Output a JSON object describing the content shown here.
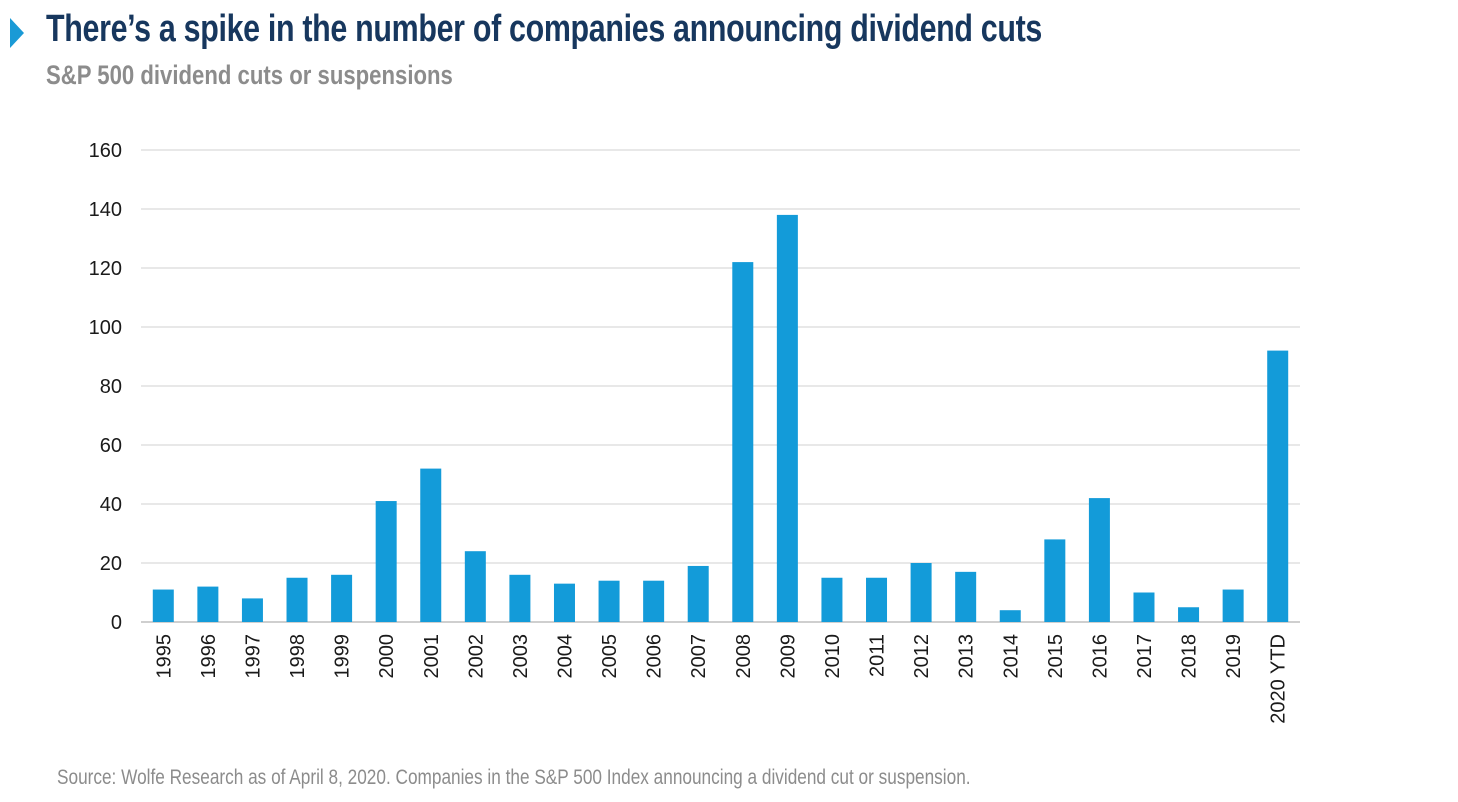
{
  "header": {
    "title": "There’s a spike in the number of companies announcing dividend cuts",
    "subtitle": "S&P 500 dividend cuts or suspensions"
  },
  "footer": {
    "source": "Source: Wolfe Research as of April 8, 2020. Companies in the S&P 500 Index announcing a dividend cut or suspension."
  },
  "colors": {
    "bar": "#139bd9",
    "marker": "#1a9ad6",
    "title": "#17375e",
    "subtitle": "#8c8c8c",
    "gridline": "#d9d9d9"
  },
  "chart_data": {
    "type": "bar",
    "title": "There’s a spike in the number of companies announcing dividend cuts",
    "subtitle": "S&P 500 dividend cuts or suspensions",
    "xlabel": "",
    "ylabel": "",
    "categories": [
      "1995",
      "1996",
      "1997",
      "1998",
      "1999",
      "2000",
      "2001",
      "2002",
      "2003",
      "2004",
      "2005",
      "2006",
      "2007",
      "2008",
      "2009",
      "2010",
      "2011",
      "2012",
      "2013",
      "2014",
      "2015",
      "2016",
      "2017",
      "2018",
      "2019",
      "2020 YTD"
    ],
    "values": [
      11,
      12,
      8,
      15,
      16,
      41,
      52,
      24,
      16,
      13,
      14,
      14,
      19,
      122,
      138,
      15,
      15,
      20,
      17,
      4,
      28,
      42,
      10,
      5,
      11,
      92
    ],
    "ylim": [
      0,
      160
    ],
    "yticks": [
      0,
      20,
      40,
      60,
      80,
      100,
      120,
      140,
      160
    ],
    "grid": true,
    "legend": "none"
  }
}
